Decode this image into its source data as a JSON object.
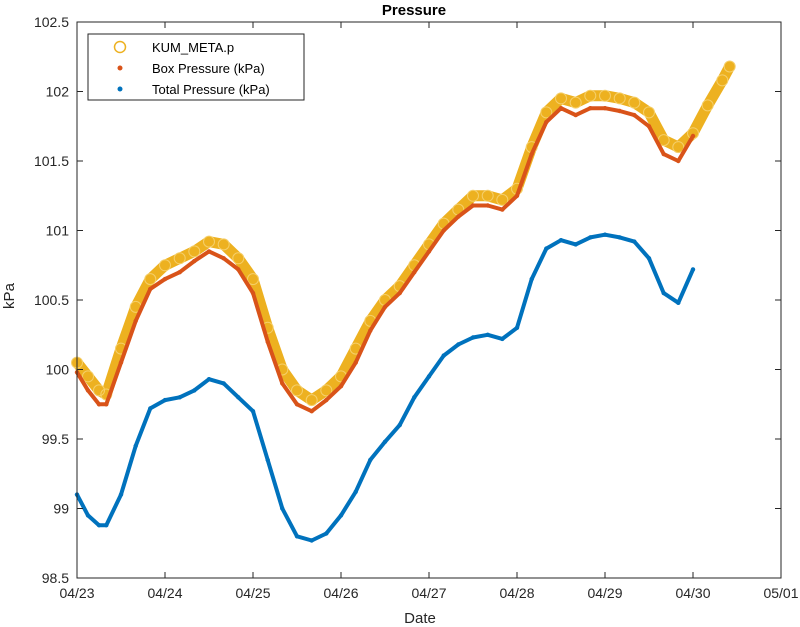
{
  "chart_data": {
    "type": "scatter",
    "title": "Pressure",
    "xlabel": "Date",
    "ylabel": "kPa",
    "xlim": [
      "04/23",
      "05/01"
    ],
    "ylim": [
      98.5,
      102.5
    ],
    "x_ticks": [
      "04/23",
      "04/24",
      "04/25",
      "04/26",
      "04/27",
      "04/28",
      "04/29",
      "04/30",
      "05/01"
    ],
    "y_ticks": [
      "98.5",
      "99",
      "99.5",
      "100",
      "100.5",
      "101",
      "101.5",
      "102",
      "102.5"
    ],
    "grid": false,
    "legend_location": "top-left",
    "series": [
      {
        "name": "KUM_META.p",
        "marker": "open-circle",
        "color": "#EDB120",
        "points": [
          [
            "04/23 00:00",
            100.05
          ],
          [
            "04/23 03:00",
            99.95
          ],
          [
            "04/23 06:00",
            99.85
          ],
          [
            "04/23 08:00",
            99.82
          ],
          [
            "04/23 12:00",
            100.15
          ],
          [
            "04/23 16:00",
            100.45
          ],
          [
            "04/23 20:00",
            100.65
          ],
          [
            "04/24 00:00",
            100.75
          ],
          [
            "04/24 04:00",
            100.8
          ],
          [
            "04/24 08:00",
            100.85
          ],
          [
            "04/24 12:00",
            100.92
          ],
          [
            "04/24 16:00",
            100.9
          ],
          [
            "04/24 20:00",
            100.8
          ],
          [
            "04/25 00:00",
            100.65
          ],
          [
            "04/25 04:00",
            100.3
          ],
          [
            "04/25 08:00",
            100.0
          ],
          [
            "04/25 12:00",
            99.85
          ],
          [
            "04/25 16:00",
            99.78
          ],
          [
            "04/25 20:00",
            99.85
          ],
          [
            "04/26 00:00",
            99.95
          ],
          [
            "04/26 04:00",
            100.15
          ],
          [
            "04/26 08:00",
            100.35
          ],
          [
            "04/26 12:00",
            100.5
          ],
          [
            "04/26 16:00",
            100.6
          ],
          [
            "04/26 20:00",
            100.75
          ],
          [
            "04/27 00:00",
            100.9
          ],
          [
            "04/27 04:00",
            101.05
          ],
          [
            "04/27 08:00",
            101.15
          ],
          [
            "04/27 12:00",
            101.25
          ],
          [
            "04/27 16:00",
            101.25
          ],
          [
            "04/27 20:00",
            101.22
          ],
          [
            "04/28 00:00",
            101.3
          ],
          [
            "04/28 04:00",
            101.6
          ],
          [
            "04/28 08:00",
            101.85
          ],
          [
            "04/28 12:00",
            101.95
          ],
          [
            "04/28 16:00",
            101.92
          ],
          [
            "04/28 20:00",
            101.97
          ],
          [
            "04/29 00:00",
            101.97
          ],
          [
            "04/29 04:00",
            101.95
          ],
          [
            "04/29 08:00",
            101.92
          ],
          [
            "04/29 12:00",
            101.85
          ],
          [
            "04/29 16:00",
            101.65
          ],
          [
            "04/29 20:00",
            101.6
          ],
          [
            "04/30 00:00",
            101.7
          ],
          [
            "04/30 04:00",
            101.9
          ],
          [
            "04/30 08:00",
            102.08
          ],
          [
            "04/30 10:00",
            102.18
          ]
        ]
      },
      {
        "name": "Box Pressure (kPa)",
        "marker": "dot",
        "color": "#D95319",
        "points": [
          [
            "04/23 00:00",
            99.98
          ],
          [
            "04/23 03:00",
            99.85
          ],
          [
            "04/23 06:00",
            99.75
          ],
          [
            "04/23 08:00",
            99.75
          ],
          [
            "04/23 12:00",
            100.05
          ],
          [
            "04/23 16:00",
            100.35
          ],
          [
            "04/23 20:00",
            100.58
          ],
          [
            "04/24 00:00",
            100.65
          ],
          [
            "04/24 04:00",
            100.7
          ],
          [
            "04/24 08:00",
            100.78
          ],
          [
            "04/24 12:00",
            100.85
          ],
          [
            "04/24 16:00",
            100.8
          ],
          [
            "04/24 20:00",
            100.72
          ],
          [
            "04/25 00:00",
            100.55
          ],
          [
            "04/25 04:00",
            100.2
          ],
          [
            "04/25 08:00",
            99.9
          ],
          [
            "04/25 12:00",
            99.75
          ],
          [
            "04/25 16:00",
            99.7
          ],
          [
            "04/25 20:00",
            99.78
          ],
          [
            "04/26 00:00",
            99.88
          ],
          [
            "04/26 04:00",
            100.05
          ],
          [
            "04/26 08:00",
            100.28
          ],
          [
            "04/26 12:00",
            100.45
          ],
          [
            "04/26 16:00",
            100.55
          ],
          [
            "04/26 20:00",
            100.7
          ],
          [
            "04/27 00:00",
            100.85
          ],
          [
            "04/27 04:00",
            101.0
          ],
          [
            "04/27 08:00",
            101.1
          ],
          [
            "04/27 12:00",
            101.18
          ],
          [
            "04/27 16:00",
            101.18
          ],
          [
            "04/27 20:00",
            101.15
          ],
          [
            "04/28 00:00",
            101.25
          ],
          [
            "04/28 04:00",
            101.55
          ],
          [
            "04/28 08:00",
            101.78
          ],
          [
            "04/28 12:00",
            101.88
          ],
          [
            "04/28 16:00",
            101.83
          ],
          [
            "04/28 20:00",
            101.88
          ],
          [
            "04/29 00:00",
            101.88
          ],
          [
            "04/29 04:00",
            101.86
          ],
          [
            "04/29 08:00",
            101.83
          ],
          [
            "04/29 12:00",
            101.75
          ],
          [
            "04/29 16:00",
            101.55
          ],
          [
            "04/29 20:00",
            101.5
          ],
          [
            "04/30 00:00",
            101.68
          ]
        ]
      },
      {
        "name": "Total Pressure (kPa)",
        "marker": "dot",
        "color": "#0072BD",
        "points": [
          [
            "04/23 00:00",
            99.1
          ],
          [
            "04/23 03:00",
            98.95
          ],
          [
            "04/23 06:00",
            98.88
          ],
          [
            "04/23 08:00",
            98.88
          ],
          [
            "04/23 12:00",
            99.1
          ],
          [
            "04/23 16:00",
            99.45
          ],
          [
            "04/23 20:00",
            99.72
          ],
          [
            "04/24 00:00",
            99.78
          ],
          [
            "04/24 04:00",
            99.8
          ],
          [
            "04/24 08:00",
            99.85
          ],
          [
            "04/24 12:00",
            99.93
          ],
          [
            "04/24 16:00",
            99.9
          ],
          [
            "04/24 20:00",
            99.8
          ],
          [
            "04/25 00:00",
            99.7
          ],
          [
            "04/25 04:00",
            99.35
          ],
          [
            "04/25 08:00",
            99.0
          ],
          [
            "04/25 12:00",
            98.8
          ],
          [
            "04/25 16:00",
            98.77
          ],
          [
            "04/25 20:00",
            98.82
          ],
          [
            "04/26 00:00",
            98.95
          ],
          [
            "04/26 04:00",
            99.12
          ],
          [
            "04/26 08:00",
            99.35
          ],
          [
            "04/26 12:00",
            99.48
          ],
          [
            "04/26 16:00",
            99.6
          ],
          [
            "04/26 20:00",
            99.8
          ],
          [
            "04/27 00:00",
            99.95
          ],
          [
            "04/27 04:00",
            100.1
          ],
          [
            "04/27 08:00",
            100.18
          ],
          [
            "04/27 12:00",
            100.23
          ],
          [
            "04/27 16:00",
            100.25
          ],
          [
            "04/27 20:00",
            100.22
          ],
          [
            "04/28 00:00",
            100.3
          ],
          [
            "04/28 04:00",
            100.65
          ],
          [
            "04/28 08:00",
            100.87
          ],
          [
            "04/28 12:00",
            100.93
          ],
          [
            "04/28 16:00",
            100.9
          ],
          [
            "04/28 20:00",
            100.95
          ],
          [
            "04/29 00:00",
            100.97
          ],
          [
            "04/29 04:00",
            100.95
          ],
          [
            "04/29 08:00",
            100.92
          ],
          [
            "04/29 12:00",
            100.8
          ],
          [
            "04/29 16:00",
            100.55
          ],
          [
            "04/29 20:00",
            100.48
          ],
          [
            "04/30 00:00",
            100.72
          ]
        ]
      }
    ]
  }
}
